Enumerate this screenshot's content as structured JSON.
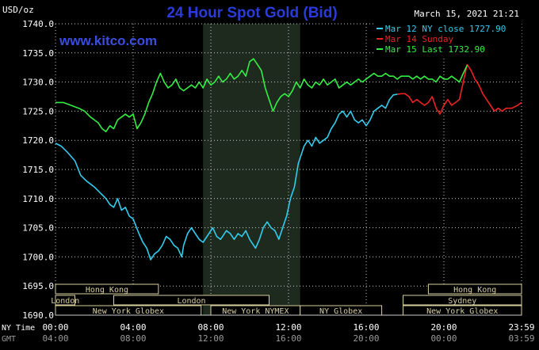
{
  "header": {
    "title": "24 Hour Spot Gold (Bid)",
    "units": "USD/oz",
    "timestamp": "March 15, 2021 21:21",
    "watermark": "www.kitco.com"
  },
  "colors": {
    "background": "#000000",
    "plot_background": "#000000",
    "shaded_session": "#1e2a1e",
    "grid": "#cccccc",
    "title": "#2b3bd9",
    "watermark": "#3a4de0",
    "axis_text": "#ffffff",
    "session_bar_fill": "#000000",
    "session_bar_border": "#d8cfa0",
    "session_bar_text": "#d8cfa0",
    "gmt_text": "#9a9a9a"
  },
  "chart_data": {
    "type": "line",
    "title": "24 Hour Spot Gold (Bid)",
    "ylabel": "USD/oz",
    "ylim": [
      1690,
      1740
    ],
    "yticks": [
      "1740.0",
      "1735.0",
      "1730.0",
      "1725.0",
      "1720.0",
      "1715.0",
      "1710.0",
      "1705.0",
      "1700.0",
      "1695.0",
      "1690.0"
    ],
    "xlim": [
      0,
      24
    ],
    "xticks": [
      {
        "x": 0,
        "ny": "00:00",
        "gmt": "04:00"
      },
      {
        "x": 4,
        "ny": "04:00",
        "gmt": "08:00"
      },
      {
        "x": 8,
        "ny": "08:00",
        "gmt": "12:00"
      },
      {
        "x": 12,
        "ny": "12:00",
        "gmt": "16:00"
      },
      {
        "x": 16,
        "ny": "16:00",
        "gmt": "20:00"
      },
      {
        "x": 20,
        "ny": "20:00",
        "gmt": "00:00"
      },
      {
        "x": 24,
        "ny": "23:59",
        "gmt": "03:59"
      }
    ],
    "x_axis_row_labels": [
      "NY Time",
      "GMT"
    ],
    "grid": true,
    "legend_position": "top-right",
    "shaded_range": [
      7.6,
      12.6
    ],
    "series": [
      {
        "name": "Mar 12 NY close 1727.90",
        "color": "#33ccee",
        "points": [
          [
            0,
            1719.5
          ],
          [
            0.3,
            1719.0
          ],
          [
            0.6,
            1718.0
          ],
          [
            1.0,
            1716.5
          ],
          [
            1.3,
            1714.0
          ],
          [
            1.6,
            1713.0
          ],
          [
            2.0,
            1712.0
          ],
          [
            2.3,
            1711.0
          ],
          [
            2.6,
            1710.0
          ],
          [
            2.8,
            1709.0
          ],
          [
            3.0,
            1708.5
          ],
          [
            3.2,
            1710.0
          ],
          [
            3.4,
            1708.0
          ],
          [
            3.6,
            1708.5
          ],
          [
            3.8,
            1707.0
          ],
          [
            4.0,
            1706.5
          ],
          [
            4.3,
            1704.0
          ],
          [
            4.5,
            1702.5
          ],
          [
            4.7,
            1701.5
          ],
          [
            4.9,
            1699.5
          ],
          [
            5.1,
            1700.5
          ],
          [
            5.3,
            1701.0
          ],
          [
            5.5,
            1702.0
          ],
          [
            5.7,
            1703.5
          ],
          [
            5.9,
            1703.0
          ],
          [
            6.1,
            1702.0
          ],
          [
            6.3,
            1701.5
          ],
          [
            6.5,
            1700.0
          ],
          [
            6.6,
            1702.0
          ],
          [
            6.8,
            1704.0
          ],
          [
            7.0,
            1705.0
          ],
          [
            7.2,
            1704.0
          ],
          [
            7.4,
            1703.0
          ],
          [
            7.6,
            1702.5
          ],
          [
            7.9,
            1704.0
          ],
          [
            8.1,
            1705.0
          ],
          [
            8.3,
            1703.5
          ],
          [
            8.5,
            1703.0
          ],
          [
            8.8,
            1704.5
          ],
          [
            9.0,
            1704.0
          ],
          [
            9.2,
            1703.0
          ],
          [
            9.4,
            1704.0
          ],
          [
            9.6,
            1703.5
          ],
          [
            9.8,
            1704.5
          ],
          [
            10.0,
            1703.0
          ],
          [
            10.3,
            1701.5
          ],
          [
            10.5,
            1703.0
          ],
          [
            10.7,
            1705.0
          ],
          [
            10.9,
            1706.0
          ],
          [
            11.1,
            1705.0
          ],
          [
            11.3,
            1704.5
          ],
          [
            11.5,
            1703.0
          ],
          [
            11.7,
            1705.0
          ],
          [
            11.9,
            1707.0
          ],
          [
            12.1,
            1710.0
          ],
          [
            12.3,
            1712.0
          ],
          [
            12.5,
            1716.0
          ],
          [
            12.8,
            1719.0
          ],
          [
            13.0,
            1720.0
          ],
          [
            13.2,
            1719.0
          ],
          [
            13.4,
            1720.5
          ],
          [
            13.6,
            1719.5
          ],
          [
            13.8,
            1720.0
          ],
          [
            14.0,
            1720.5
          ],
          [
            14.2,
            1722.0
          ],
          [
            14.4,
            1723.0
          ],
          [
            14.6,
            1724.5
          ],
          [
            14.8,
            1725.0
          ],
          [
            15.0,
            1724.0
          ],
          [
            15.2,
            1725.0
          ],
          [
            15.4,
            1723.5
          ],
          [
            15.6,
            1723.0
          ],
          [
            15.8,
            1723.5
          ],
          [
            16.0,
            1722.5
          ],
          [
            16.2,
            1723.5
          ],
          [
            16.4,
            1725.0
          ],
          [
            16.6,
            1725.5
          ],
          [
            16.8,
            1726.0
          ],
          [
            17.0,
            1725.5
          ],
          [
            17.2,
            1727.0
          ],
          [
            17.4,
            1727.8
          ],
          [
            17.6,
            1727.9
          ]
        ]
      },
      {
        "name": "Mar 14 Sunday",
        "color": "#ee2222",
        "points": [
          [
            17.6,
            1727.9
          ],
          [
            17.8,
            1728.0
          ],
          [
            18.0,
            1728.0
          ],
          [
            18.2,
            1727.5
          ],
          [
            18.4,
            1726.5
          ],
          [
            18.6,
            1727.0
          ],
          [
            18.8,
            1726.5
          ],
          [
            19.0,
            1726.0
          ],
          [
            19.2,
            1726.5
          ],
          [
            19.4,
            1727.5
          ],
          [
            19.6,
            1725.5
          ],
          [
            19.8,
            1724.5
          ],
          [
            20.0,
            1726.0
          ],
          [
            20.2,
            1727.0
          ],
          [
            20.4,
            1726.0
          ],
          [
            20.6,
            1726.5
          ],
          [
            20.8,
            1727.0
          ],
          [
            21.0,
            1730.0
          ],
          [
            21.2,
            1733.0
          ],
          [
            21.4,
            1732.0
          ],
          [
            21.6,
            1730.5
          ],
          [
            21.8,
            1729.5
          ],
          [
            22.0,
            1728.0
          ],
          [
            22.2,
            1727.0
          ],
          [
            22.4,
            1726.0
          ],
          [
            22.6,
            1725.0
          ],
          [
            22.8,
            1725.5
          ],
          [
            23.0,
            1725.0
          ],
          [
            23.2,
            1725.5
          ],
          [
            23.5,
            1725.5
          ],
          [
            23.8,
            1726.0
          ],
          [
            24.0,
            1726.5
          ]
        ]
      },
      {
        "name": "Mar 15 Last 1732.90",
        "color": "#33ee44",
        "points": [
          [
            0,
            1726.5
          ],
          [
            0.4,
            1726.5
          ],
          [
            0.8,
            1726.0
          ],
          [
            1.2,
            1725.5
          ],
          [
            1.5,
            1725.0
          ],
          [
            1.8,
            1724.0
          ],
          [
            2.0,
            1723.5
          ],
          [
            2.2,
            1723.0
          ],
          [
            2.4,
            1722.0
          ],
          [
            2.6,
            1721.5
          ],
          [
            2.8,
            1722.5
          ],
          [
            3.0,
            1722.0
          ],
          [
            3.2,
            1723.5
          ],
          [
            3.4,
            1724.0
          ],
          [
            3.6,
            1724.5
          ],
          [
            3.8,
            1724.0
          ],
          [
            4.0,
            1724.5
          ],
          [
            4.2,
            1722.0
          ],
          [
            4.4,
            1723.0
          ],
          [
            4.6,
            1724.5
          ],
          [
            4.8,
            1726.5
          ],
          [
            5.0,
            1728.0
          ],
          [
            5.2,
            1730.0
          ],
          [
            5.4,
            1731.5
          ],
          [
            5.6,
            1730.0
          ],
          [
            5.8,
            1729.0
          ],
          [
            6.0,
            1729.5
          ],
          [
            6.2,
            1730.5
          ],
          [
            6.4,
            1729.0
          ],
          [
            6.6,
            1728.5
          ],
          [
            6.8,
            1729.0
          ],
          [
            7.0,
            1729.5
          ],
          [
            7.2,
            1729.0
          ],
          [
            7.4,
            1730.0
          ],
          [
            7.6,
            1729.0
          ],
          [
            7.8,
            1730.5
          ],
          [
            8.0,
            1729.5
          ],
          [
            8.2,
            1730.0
          ],
          [
            8.4,
            1731.0
          ],
          [
            8.6,
            1730.0
          ],
          [
            8.8,
            1730.5
          ],
          [
            9.0,
            1731.5
          ],
          [
            9.2,
            1730.5
          ],
          [
            9.4,
            1731.0
          ],
          [
            9.6,
            1732.0
          ],
          [
            9.8,
            1731.0
          ],
          [
            10.0,
            1733.5
          ],
          [
            10.2,
            1734.0
          ],
          [
            10.4,
            1733.0
          ],
          [
            10.6,
            1732.0
          ],
          [
            10.8,
            1729.0
          ],
          [
            11.0,
            1727.0
          ],
          [
            11.2,
            1725.0
          ],
          [
            11.4,
            1726.5
          ],
          [
            11.6,
            1727.5
          ],
          [
            11.8,
            1728.0
          ],
          [
            12.0,
            1727.5
          ],
          [
            12.2,
            1728.5
          ],
          [
            12.4,
            1730.0
          ],
          [
            12.6,
            1729.0
          ],
          [
            12.8,
            1730.5
          ],
          [
            13.0,
            1729.5
          ],
          [
            13.2,
            1729.0
          ],
          [
            13.4,
            1730.0
          ],
          [
            13.6,
            1729.5
          ],
          [
            13.8,
            1730.5
          ],
          [
            14.0,
            1729.5
          ],
          [
            14.2,
            1730.0
          ],
          [
            14.4,
            1730.5
          ],
          [
            14.6,
            1729.0
          ],
          [
            14.8,
            1729.5
          ],
          [
            15.0,
            1730.0
          ],
          [
            15.2,
            1729.5
          ],
          [
            15.4,
            1730.0
          ],
          [
            15.6,
            1730.5
          ],
          [
            15.8,
            1730.0
          ],
          [
            16.0,
            1730.5
          ],
          [
            16.2,
            1731.0
          ],
          [
            16.4,
            1731.5
          ],
          [
            16.6,
            1731.0
          ],
          [
            16.8,
            1731.0
          ],
          [
            17.0,
            1731.5
          ],
          [
            17.2,
            1731.0
          ],
          [
            17.4,
            1731.0
          ],
          [
            17.6,
            1730.5
          ],
          [
            17.8,
            1731.0
          ],
          [
            18.0,
            1731.0
          ],
          [
            18.2,
            1731.0
          ],
          [
            18.4,
            1730.5
          ],
          [
            18.6,
            1731.0
          ],
          [
            18.8,
            1730.5
          ],
          [
            19.0,
            1731.0
          ],
          [
            19.2,
            1730.5
          ],
          [
            19.4,
            1730.5
          ],
          [
            19.6,
            1730.0
          ],
          [
            19.8,
            1731.0
          ],
          [
            20.0,
            1730.5
          ],
          [
            20.2,
            1730.5
          ],
          [
            20.4,
            1731.0
          ],
          [
            20.6,
            1730.5
          ],
          [
            20.8,
            1730.0
          ],
          [
            21.0,
            1731.5
          ],
          [
            21.2,
            1732.9
          ]
        ]
      }
    ],
    "sessions": [
      {
        "label": "Hong Kong",
        "start": 0,
        "end": 5.3,
        "row": 1
      },
      {
        "label": "Hong Kong",
        "start": 19.2,
        "end": 24,
        "row": 1
      },
      {
        "label": "London",
        "start": 0,
        "end": 1.0,
        "row": 2
      },
      {
        "label": "London",
        "start": 3.0,
        "end": 11.0,
        "row": 2
      },
      {
        "label": "Sydney",
        "start": 17.9,
        "end": 24,
        "row": 2
      },
      {
        "label": "New York Globex",
        "start": 0,
        "end": 7.5,
        "row": 3
      },
      {
        "label": "New York NYMEX",
        "start": 8.0,
        "end": 12.6,
        "row": 3
      },
      {
        "label": "NY Globex",
        "start": 12.6,
        "end": 16.8,
        "row": 3
      },
      {
        "label": "New York Globex",
        "start": 17.9,
        "end": 24,
        "row": 3
      }
    ]
  }
}
